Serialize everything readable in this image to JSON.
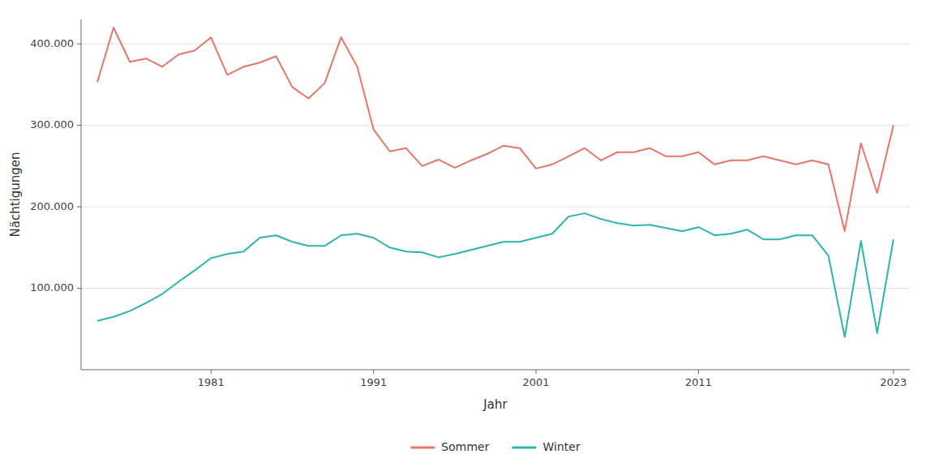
{
  "chart_data": {
    "type": "line",
    "x_label": "Jahr",
    "y_label": "Nächtigungen",
    "x": [
      1974,
      1975,
      1976,
      1977,
      1978,
      1979,
      1980,
      1981,
      1982,
      1983,
      1984,
      1985,
      1986,
      1987,
      1988,
      1989,
      1990,
      1991,
      1992,
      1993,
      1994,
      1995,
      1996,
      1997,
      1998,
      1999,
      2000,
      2001,
      2002,
      2003,
      2004,
      2005,
      2006,
      2007,
      2008,
      2009,
      2010,
      2011,
      2012,
      2013,
      2014,
      2015,
      2016,
      2017,
      2018,
      2019,
      2020,
      2021,
      2022,
      2023
    ],
    "series": [
      {
        "name": "Sommer",
        "color": "#E8756A",
        "values": [
          353000,
          420000,
          378000,
          382000,
          372000,
          387000,
          392000,
          408000,
          362000,
          372000,
          377000,
          385000,
          347000,
          333000,
          352000,
          408000,
          372000,
          295000,
          268000,
          272000,
          250000,
          258000,
          248000,
          257000,
          265000,
          275000,
          272000,
          247000,
          252000,
          262000,
          272000,
          257000,
          267000,
          267000,
          272000,
          262000,
          262000,
          267000,
          252000,
          257000,
          257000,
          262000,
          257000,
          252000,
          257000,
          252000,
          170000,
          278000,
          217000,
          300000
        ]
      },
      {
        "name": "Winter",
        "color": "#2BB5AC",
        "values": [
          60000,
          65000,
          72000,
          82000,
          93000,
          108000,
          122000,
          137000,
          142000,
          145000,
          162000,
          165000,
          157000,
          152000,
          152000,
          165000,
          167000,
          162000,
          150000,
          145000,
          144000,
          138000,
          142000,
          147000,
          152000,
          157000,
          157000,
          162000,
          167000,
          188000,
          192000,
          185000,
          180000,
          177000,
          178000,
          174000,
          170000,
          175000,
          165000,
          167000,
          172000,
          160000,
          160000,
          165000,
          165000,
          140000,
          40000,
          158000,
          45000,
          160000
        ]
      }
    ],
    "xlim": [
      1973,
      2024
    ],
    "ylim": [
      0,
      430000
    ],
    "xticks": [
      1981,
      1991,
      2001,
      2011,
      2023
    ],
    "yticks": [
      {
        "value": 100000,
        "label": "100.000"
      },
      {
        "value": 200000,
        "label": "200.000"
      },
      {
        "value": 300000,
        "label": "300.000"
      },
      {
        "value": 400000,
        "label": "400.000"
      }
    ],
    "grid": true,
    "legend": "bottom"
  }
}
